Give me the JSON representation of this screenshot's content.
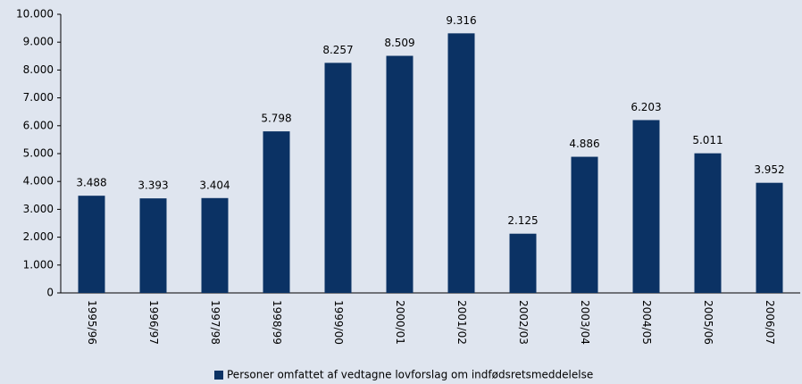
{
  "chart_data": {
    "type": "bar",
    "categories": [
      "1995/96",
      "1996/97",
      "1997/98",
      "1998/99",
      "1999/00",
      "2000/01",
      "2001/02",
      "2002/03",
      "2003/04",
      "2004/05",
      "2005/06",
      "2006/07"
    ],
    "series": [
      {
        "name": "Personer omfattet af vedtagne lovforslag om indfødsretsmeddelelse",
        "color": "#0b3264",
        "values": [
          3488,
          3393,
          3404,
          5798,
          8257,
          8509,
          9316,
          2125,
          4886,
          6203,
          5011,
          3952
        ],
        "value_labels": [
          "3.488",
          "3.393",
          "3.404",
          "5.798",
          "8.257",
          "8.509",
          "9.316",
          "2.125",
          "4.886",
          "6.203",
          "5.011",
          "3.952"
        ]
      }
    ],
    "ylim": [
      0,
      10000
    ],
    "yticks": [
      0,
      {
        "value": 1000,
        "label": "1.000"
      },
      {
        "value": 2000,
        "label": "2.000"
      },
      {
        "value": 3000,
        "label": "3.000"
      },
      {
        "value": 4000,
        "label": "4.000"
      },
      {
        "value": 5000,
        "label": "5.000"
      },
      {
        "value": 6000,
        "label": "6.000"
      },
      {
        "value": 7000,
        "label": "7.000"
      },
      {
        "value": 8000,
        "label": "8.000"
      },
      {
        "value": 9000,
        "label": "9.000"
      },
      {
        "value": 10000,
        "label": "10.000"
      }
    ],
    "legend": "bottom"
  }
}
